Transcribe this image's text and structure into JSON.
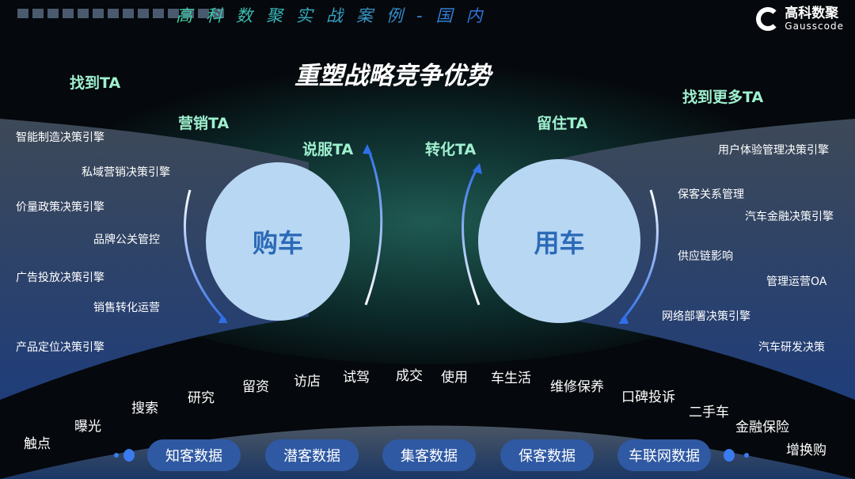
{
  "header": {
    "title": "高科数聚实战案例-国内",
    "logo_cn": "高科数聚",
    "logo_en": "Gausscode"
  },
  "main_title": "重塑战略竞争优势",
  "ta_labels": [
    "找到TA",
    "营销TA",
    "说服TA",
    "转化TA",
    "留住TA",
    "找到更多TA"
  ],
  "circles": {
    "buy": "购车",
    "use": "用车"
  },
  "left_engines": [
    "智能制造决策引擎",
    "私域营销决策引擎",
    "价量政策决策引擎",
    "品牌公关管控",
    "广告投放决策引擎",
    "销售转化运营",
    "产品定位决策引擎"
  ],
  "right_engines": [
    "用户体验管理决策引擎",
    "保客关系管理",
    "汽车金融决策引擎",
    "供应链影响",
    "管理运营OA",
    "网络部署决策引擎",
    "汽车研发决策"
  ],
  "journey": [
    "触点",
    "曝光",
    "搜索",
    "研究",
    "留资",
    "访店",
    "试驾",
    "成交",
    "使用",
    "车生活",
    "维修保养",
    "口碑投诉",
    "二手车",
    "金融保险",
    "增换购"
  ],
  "data_buttons": [
    "知客数据",
    "潜客数据",
    "集客数据",
    "保客数据",
    "车联网数据"
  ],
  "colors": {
    "accent": "#9ff0cf",
    "circle": "#b8d7f3",
    "button": "#2f59a3"
  }
}
